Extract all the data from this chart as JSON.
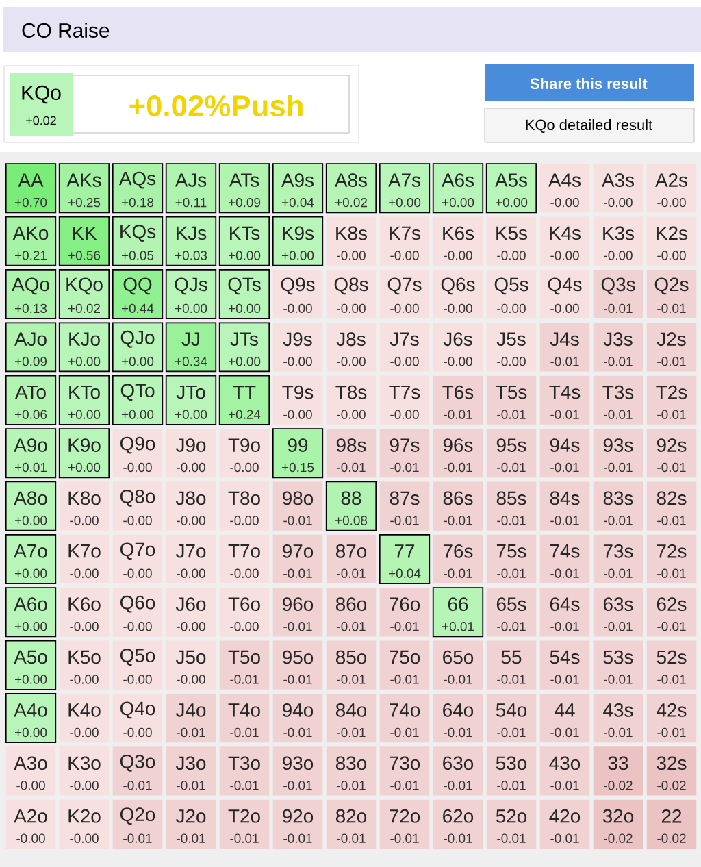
{
  "chart_data": {
    "type": "heatmap",
    "title": "CO Raise",
    "categories": [
      null,
      null,
      null,
      null,
      null,
      null,
      null,
      null,
      null,
      null,
      null,
      null,
      null
    ],
    "y_categories": [
      null,
      null,
      null,
      null,
      null,
      null,
      null,
      null,
      null,
      null,
      null,
      null,
      null
    ],
    "cells": [
      [
        0.7,
        0.25,
        0.18,
        0.11,
        0.09,
        0.04,
        0.02,
        0.0,
        0.0,
        0.0,
        -0.0,
        -0.0,
        -0.0
      ],
      [
        0.21,
        0.56,
        0.05,
        0.03,
        0.0,
        0.0,
        -0.0,
        -0.0,
        -0.0,
        -0.0,
        -0.0,
        -0.0,
        -0.0
      ],
      [
        0.13,
        0.02,
        0.44,
        0.0,
        0.0,
        -0.0,
        -0.0,
        -0.0,
        -0.0,
        -0.0,
        -0.0,
        -0.01,
        -0.01
      ],
      [
        0.09,
        0.0,
        0.0,
        0.34,
        0.0,
        -0.0,
        -0.0,
        -0.0,
        -0.0,
        -0.0,
        -0.01,
        -0.01,
        -0.01
      ],
      [
        0.06,
        0.0,
        0.0,
        0.0,
        0.24,
        -0.0,
        -0.0,
        -0.0,
        -0.01,
        -0.01,
        -0.01,
        -0.01,
        -0.01
      ],
      [
        0.01,
        0.0,
        -0.0,
        -0.0,
        -0.0,
        0.15,
        -0.01,
        -0.01,
        -0.01,
        -0.01,
        -0.01,
        -0.01,
        -0.01
      ],
      [
        0.0,
        -0.0,
        -0.0,
        -0.0,
        -0.0,
        -0.01,
        0.08,
        -0.01,
        -0.01,
        -0.01,
        -0.01,
        -0.01,
        -0.01
      ],
      [
        0.0,
        -0.0,
        -0.0,
        -0.0,
        -0.0,
        -0.01,
        -0.01,
        0.04,
        -0.01,
        -0.01,
        -0.01,
        -0.01,
        -0.01
      ],
      [
        0.0,
        -0.0,
        -0.0,
        -0.0,
        -0.0,
        -0.01,
        -0.01,
        -0.01,
        0.01,
        -0.01,
        -0.01,
        -0.01,
        -0.01
      ],
      [
        0.0,
        -0.0,
        -0.0,
        -0.0,
        -0.01,
        -0.01,
        -0.01,
        -0.01,
        -0.01,
        -0.01,
        -0.01,
        -0.01,
        -0.01
      ],
      [
        0.0,
        -0.0,
        -0.0,
        -0.01,
        -0.01,
        -0.01,
        -0.01,
        -0.01,
        -0.01,
        -0.01,
        -0.01,
        -0.01,
        -0.01
      ],
      [
        -0.0,
        -0.0,
        -0.01,
        -0.01,
        -0.01,
        -0.01,
        -0.01,
        -0.01,
        -0.01,
        -0.01,
        -0.01,
        -0.02,
        -0.02
      ],
      [
        -0.0,
        -0.0,
        -0.01,
        -0.01,
        -0.01,
        -0.01,
        -0.01,
        -0.01,
        -0.01,
        -0.01,
        -0.01,
        -0.02,
        -0.02
      ]
    ],
    "cell_labels": [
      [
        "+0.70",
        "+0.25",
        "+0.18",
        "+0.11",
        "+0.09",
        "+0.04",
        "+0.02",
        "+0.00",
        "+0.00",
        "+0.00",
        "-0.00",
        "-0.00",
        "-0.00"
      ],
      [
        "+0.21",
        "+0.56",
        "+0.05",
        "+0.03",
        "+0.00",
        "+0.00",
        "-0.00",
        "-0.00",
        "-0.00",
        "-0.00",
        "-0.00",
        "-0.00",
        "-0.00"
      ],
      [
        "+0.13",
        "+0.02",
        "+0.44",
        "+0.00",
        "+0.00",
        "-0.00",
        "-0.00",
        "-0.00",
        "-0.00",
        "-0.00",
        "-0.00",
        "-0.01",
        "-0.01"
      ],
      [
        "+0.09",
        "+0.00",
        "+0.00",
        "+0.34",
        "+0.00",
        "-0.00",
        "-0.00",
        "-0.00",
        "-0.00",
        "-0.00",
        "-0.01",
        "-0.01",
        "-0.01"
      ],
      [
        "+0.06",
        "+0.00",
        "+0.00",
        "+0.00",
        "+0.24",
        "-0.00",
        "-0.00",
        "-0.00",
        "-0.01",
        "-0.01",
        "-0.01",
        "-0.01",
        "-0.01"
      ],
      [
        "+0.01",
        "+0.00",
        "-0.00",
        "-0.00",
        "-0.00",
        "+0.15",
        "-0.01",
        "-0.01",
        "-0.01",
        "-0.01",
        "-0.01",
        "-0.01",
        "-0.01"
      ],
      [
        "+0.00",
        "-0.00",
        "-0.00",
        "-0.00",
        "-0.00",
        "-0.01",
        "+0.08",
        "-0.01",
        "-0.01",
        "-0.01",
        "-0.01",
        "-0.01",
        "-0.01"
      ],
      [
        "+0.00",
        "-0.00",
        "-0.00",
        "-0.00",
        "-0.00",
        "-0.01",
        "-0.01",
        "+0.04",
        "-0.01",
        "-0.01",
        "-0.01",
        "-0.01",
        "-0.01"
      ],
      [
        "+0.00",
        "-0.00",
        "-0.00",
        "-0.00",
        "-0.00",
        "-0.01",
        "-0.01",
        "-0.01",
        "+0.01",
        "-0.01",
        "-0.01",
        "-0.01",
        "-0.01"
      ],
      [
        "+0.00",
        "-0.00",
        "-0.00",
        "-0.00",
        "-0.01",
        "-0.01",
        "-0.01",
        "-0.01",
        "-0.01",
        "-0.01",
        "-0.01",
        "-0.01",
        "-0.01"
      ],
      [
        "+0.00",
        "-0.00",
        "-0.00",
        "-0.01",
        "-0.01",
        "-0.01",
        "-0.01",
        "-0.01",
        "-0.01",
        "-0.01",
        "-0.01",
        "-0.01",
        "-0.01"
      ],
      [
        "-0.00",
        "-0.00",
        "-0.01",
        "-0.01",
        "-0.01",
        "-0.01",
        "-0.01",
        "-0.01",
        "-0.01",
        "-0.01",
        "-0.01",
        "-0.02",
        "-0.02"
      ],
      [
        "-0.00",
        "-0.00",
        "-0.01",
        "-0.01",
        "-0.01",
        "-0.01",
        "-0.01",
        "-0.01",
        "-0.01",
        "-0.01",
        "-0.01",
        "-0.02",
        "-0.02"
      ]
    ],
    "annotations": [
      "KQo",
      "+0.02",
      "+0.02%Push",
      "Share this result",
      "KQo detailed result",
      "AA",
      "AKs",
      "AQs",
      "AJs",
      "ATs",
      "A9s",
      "A8s",
      "A7s",
      "A6s",
      "A5s",
      "A4s",
      "A3s",
      "A2s",
      "AKo",
      "KK",
      "KQs",
      "KJs",
      "KTs",
      "K9s",
      "K8s",
      "K7s",
      "K6s",
      "K5s",
      "K4s",
      "K3s",
      "K2s",
      "AQo",
      "KQo",
      "QQ",
      "QJs",
      "QTs",
      "Q9s",
      "Q8s",
      "Q7s",
      "Q6s",
      "Q5s",
      "Q4s",
      "Q3s",
      "Q2s",
      "AJo",
      "KJo",
      "QJo",
      "JJ",
      "JTs",
      "J9s",
      "J8s",
      "J7s",
      "J6s",
      "J5s",
      "J4s",
      "J3s",
      "J2s",
      "ATo",
      "KTo",
      "QTo",
      "JTo",
      "TT",
      "T9s",
      "T8s",
      "T7s",
      "T6s",
      "T5s",
      "T4s",
      "T3s",
      "T2s",
      "A9o",
      "K9o",
      "Q9o",
      "J9o",
      "T9o",
      "99",
      "98s",
      "97s",
      "96s",
      "95s",
      "94s",
      "93s",
      "92s",
      "A8o",
      "K8o",
      "Q8o",
      "J8o",
      "T8o",
      "98o",
      "88",
      "87s",
      "86s",
      "85s",
      "84s",
      "83s",
      "82s",
      "A7o",
      "K7o",
      "Q7o",
      "J7o",
      "T7o",
      "97o",
      "87o",
      "77",
      "76s",
      "75s",
      "74s",
      "73s",
      "72s",
      "A6o",
      "K6o",
      "Q6o",
      "J6o",
      "T6o",
      "96o",
      "86o",
      "76o",
      "66",
      "65s",
      "64s",
      "63s",
      "62s",
      "A5o",
      "K5o",
      "Q5o",
      "J5o",
      "T5o",
      "95o",
      "85o",
      "75o",
      "65o",
      "55",
      "54s",
      "53s",
      "52s",
      "A4o",
      "K4o",
      "Q4o",
      "J4o",
      "T4o",
      "94o",
      "84o",
      "74o",
      "64o",
      "54o",
      "44",
      "43s",
      "42s",
      "A3o",
      "K3o",
      "Q3o",
      "J3o",
      "T3o",
      "93o",
      "83o",
      "73o",
      "63o",
      "53o",
      "43o",
      "33",
      "32s",
      "A2o",
      "K2o",
      "Q2o",
      "J2o",
      "T2o",
      "92o",
      "82o",
      "72o",
      "62o",
      "52o",
      "42o",
      "32o",
      "22"
    ]
  }
}
